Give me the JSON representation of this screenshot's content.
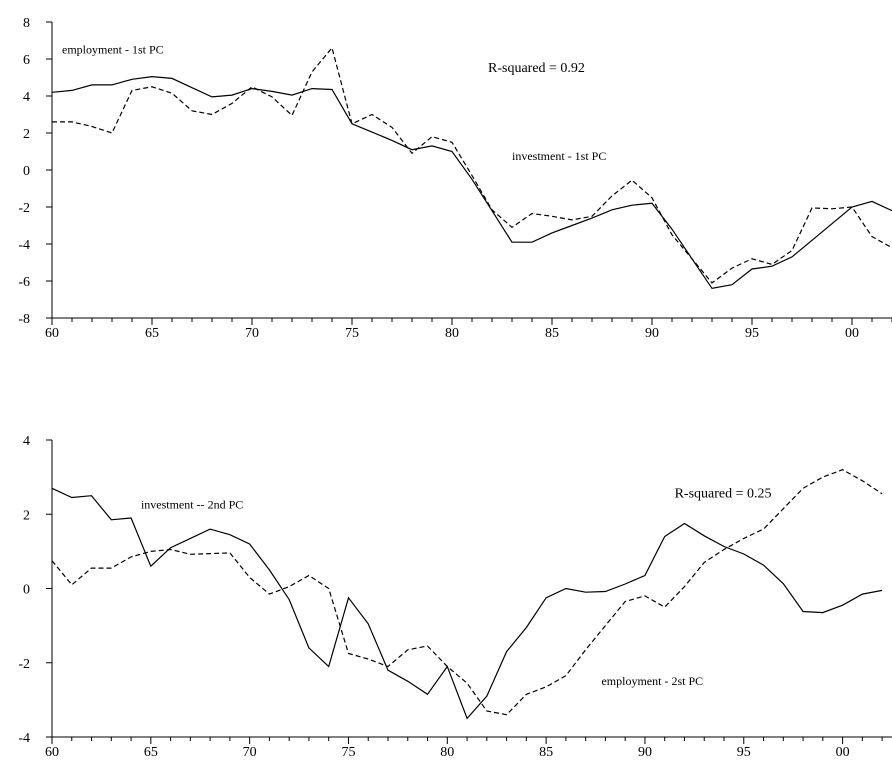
{
  "chart_data": [
    {
      "type": "line",
      "x_tick_labels": [
        "60",
        "65",
        "70",
        "75",
        "80",
        "85",
        "90",
        "95",
        "00"
      ],
      "x_tick_years": [
        1960,
        1965,
        1970,
        1975,
        1980,
        1985,
        1990,
        1995,
        2000
      ],
      "xlim": [
        1960,
        2002
      ],
      "y_ticks": [
        -8,
        -6,
        -4,
        -2,
        0,
        2,
        4,
        6,
        8
      ],
      "ylim": [
        -8,
        8
      ],
      "annotations": [
        {
          "text": "employment - 1st PC",
          "anchor_year": 1960.5,
          "anchor_y": 6.3
        },
        {
          "text": "R-squared = 0.92",
          "anchor_year": 1981.8,
          "anchor_y": 5.3
        },
        {
          "text": "investment - 1st PC",
          "anchor_year": 1983.0,
          "anchor_y": 0.55
        }
      ],
      "series": [
        {
          "style": "solid",
          "x": [
            1960,
            1961,
            1962,
            1963,
            1964,
            1965,
            1966,
            1967,
            1968,
            1969,
            1970,
            1971,
            1972,
            1973,
            1974,
            1975,
            1976,
            1977,
            1978,
            1979,
            1980,
            1981,
            1982,
            1983,
            1984,
            1985,
            1986,
            1987,
            1988,
            1989,
            1990,
            1991,
            1992,
            1993,
            1994,
            1995,
            1996,
            1997,
            1998,
            1999,
            2000,
            2001,
            2002
          ],
          "values": [
            4.2,
            4.3,
            4.6,
            4.6,
            4.9,
            5.05,
            4.95,
            4.45,
            3.95,
            4.05,
            4.4,
            4.25,
            4.05,
            4.4,
            4.35,
            2.5,
            2.05,
            1.6,
            1.1,
            1.3,
            1.0,
            -0.5,
            -2.2,
            -3.9,
            -3.9,
            -3.4,
            -3.0,
            -2.6,
            -2.15,
            -1.9,
            -1.8,
            -3.2,
            -4.8,
            -6.4,
            -6.2,
            -5.35,
            -5.2,
            -4.7,
            -3.8,
            -2.9,
            -2.0,
            -1.7,
            -2.2
          ]
        },
        {
          "style": "dashed",
          "x": [
            1960,
            1961,
            1962,
            1963,
            1964,
            1965,
            1966,
            1967,
            1968,
            1969,
            1970,
            1971,
            1972,
            1973,
            1974,
            1975,
            1976,
            1977,
            1978,
            1979,
            1980,
            1981,
            1982,
            1983,
            1984,
            1985,
            1986,
            1987,
            1988,
            1989,
            1990,
            1991,
            1992,
            1993,
            1994,
            1995,
            1996,
            1997,
            1998,
            1999,
            2000,
            2001,
            2002
          ],
          "values": [
            2.6,
            2.6,
            2.35,
            2.0,
            4.3,
            4.5,
            4.15,
            3.2,
            3.0,
            3.6,
            4.5,
            3.95,
            2.95,
            5.3,
            6.6,
            2.5,
            3.0,
            2.3,
            0.9,
            1.8,
            1.5,
            -0.3,
            -2.15,
            -3.1,
            -2.35,
            -2.5,
            -2.7,
            -2.5,
            -1.4,
            -0.55,
            -1.5,
            -3.5,
            -4.8,
            -6.1,
            -5.3,
            -4.8,
            -5.1,
            -4.35,
            -2.05,
            -2.1,
            -2.0,
            -3.6,
            -4.2
          ]
        }
      ]
    },
    {
      "type": "line",
      "x_tick_labels": [
        "60",
        "65",
        "70",
        "75",
        "80",
        "85",
        "90",
        "95",
        "00"
      ],
      "x_tick_years": [
        1960,
        1965,
        1970,
        1975,
        1980,
        1985,
        1990,
        1995,
        2000
      ],
      "xlim": [
        1960,
        2002.5
      ],
      "y_ticks": [
        -4,
        -2,
        0,
        2,
        4
      ],
      "ylim": [
        -4,
        4
      ],
      "annotations": [
        {
          "text": "investment -- 2nd PC",
          "anchor_year": 1964.5,
          "anchor_y": 2.15
        },
        {
          "text": "R-squared = 0.25",
          "anchor_year": 1991.5,
          "anchor_y": 2.45
        },
        {
          "text": "employment - 2st PC",
          "anchor_year": 1987.8,
          "anchor_y": -2.6
        }
      ],
      "series": [
        {
          "style": "solid",
          "x": [
            1960,
            1961,
            1962,
            1963,
            1964,
            1965,
            1966,
            1967,
            1968,
            1969,
            1970,
            1971,
            1972,
            1973,
            1974,
            1975,
            1976,
            1977,
            1978,
            1979,
            1980,
            1981,
            1982,
            1983,
            1984,
            1985,
            1986,
            1987,
            1988,
            1989,
            1990,
            1991,
            1992,
            1993,
            1994,
            1995,
            1996,
            1997,
            1998,
            1999,
            2000,
            2001,
            2002
          ],
          "values": [
            2.7,
            2.45,
            2.5,
            1.85,
            1.9,
            0.6,
            1.1,
            1.35,
            1.6,
            1.45,
            1.2,
            0.5,
            -0.3,
            -1.6,
            -2.1,
            -0.25,
            -0.95,
            -2.2,
            -2.5,
            -2.85,
            -2.1,
            -3.5,
            -2.9,
            -1.7,
            -1.05,
            -0.25,
            0.0,
            -0.1,
            -0.08,
            0.12,
            0.35,
            1.4,
            1.75,
            1.42,
            1.13,
            0.93,
            0.63,
            0.13,
            -0.62,
            -0.65,
            -0.45,
            -0.15,
            -0.05
          ]
        },
        {
          "style": "dashed",
          "x": [
            1960,
            1961,
            1962,
            1963,
            1964,
            1965,
            1966,
            1967,
            1968,
            1969,
            1970,
            1971,
            1972,
            1973,
            1974,
            1975,
            1976,
            1977,
            1978,
            1979,
            1980,
            1981,
            1982,
            1983,
            1984,
            1985,
            1986,
            1987,
            1988,
            1989,
            1990,
            1991,
            1992,
            1993,
            1994,
            1995,
            1996,
            1997,
            1998,
            1999,
            2000,
            2001,
            2002
          ],
          "values": [
            0.75,
            0.1,
            0.55,
            0.55,
            0.85,
            1.0,
            1.05,
            0.92,
            0.94,
            0.96,
            0.3,
            -0.15,
            0.05,
            0.35,
            0.0,
            -1.75,
            -1.9,
            -2.1,
            -1.65,
            -1.55,
            -2.1,
            -2.55,
            -3.3,
            -3.4,
            -2.85,
            -2.65,
            -2.35,
            -1.65,
            -1.0,
            -0.35,
            -0.2,
            -0.5,
            0.05,
            0.7,
            1.05,
            1.35,
            1.6,
            2.15,
            2.7,
            3.0,
            3.2,
            2.9,
            2.55
          ]
        }
      ]
    }
  ]
}
